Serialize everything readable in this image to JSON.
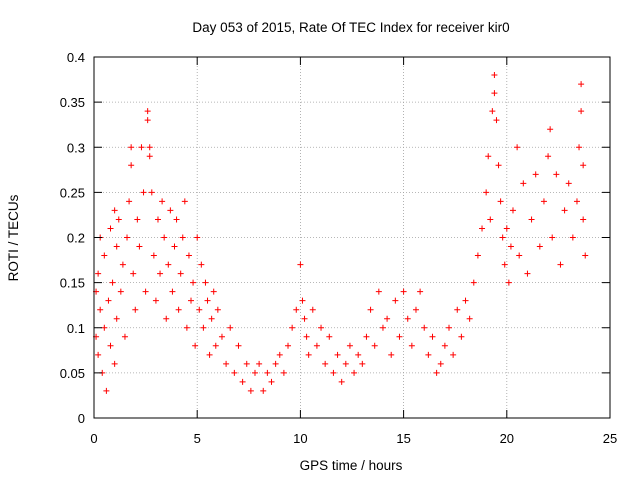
{
  "chart_data": {
    "type": "scatter",
    "title": "Day 053 of 2015, Rate Of TEC Index for receiver kir0",
    "xlabel": "GPS time / hours",
    "ylabel": "ROTI / TECUs",
    "xlim": [
      0,
      25
    ],
    "ylim": [
      0,
      0.4
    ],
    "xticks": [
      "0",
      "5",
      "10",
      "15",
      "20",
      "25"
    ],
    "yticks": [
      "0",
      "0.05",
      "0.1",
      "0.15",
      "0.2",
      "0.25",
      "0.3",
      "0.35",
      "0.4"
    ],
    "grid": true,
    "legend": "none",
    "marker": "+",
    "color": "#ff0000",
    "series": [
      {
        "points": [
          [
            0.1,
            0.14
          ],
          [
            0.1,
            0.09
          ],
          [
            0.2,
            0.16
          ],
          [
            0.2,
            0.07
          ],
          [
            0.3,
            0.2
          ],
          [
            0.3,
            0.12
          ],
          [
            0.4,
            0.05
          ],
          [
            0.5,
            0.18
          ],
          [
            0.5,
            0.1
          ],
          [
            0.6,
            0.03
          ],
          [
            0.7,
            0.13
          ],
          [
            0.8,
            0.21
          ],
          [
            0.8,
            0.08
          ],
          [
            0.9,
            0.15
          ],
          [
            1.0,
            0.23
          ],
          [
            1.0,
            0.06
          ],
          [
            1.1,
            0.19
          ],
          [
            1.1,
            0.11
          ],
          [
            1.2,
            0.22
          ],
          [
            1.3,
            0.14
          ],
          [
            1.4,
            0.17
          ],
          [
            1.5,
            0.09
          ],
          [
            1.6,
            0.2
          ],
          [
            1.7,
            0.24
          ],
          [
            1.8,
            0.28
          ],
          [
            1.8,
            0.3
          ],
          [
            1.9,
            0.16
          ],
          [
            2.0,
            0.12
          ],
          [
            2.1,
            0.22
          ],
          [
            2.2,
            0.19
          ],
          [
            2.3,
            0.3
          ],
          [
            2.4,
            0.25
          ],
          [
            2.5,
            0.14
          ],
          [
            2.6,
            0.34
          ],
          [
            2.6,
            0.33
          ],
          [
            2.7,
            0.29
          ],
          [
            2.7,
            0.3
          ],
          [
            2.8,
            0.25
          ],
          [
            2.9,
            0.18
          ],
          [
            3.0,
            0.13
          ],
          [
            3.1,
            0.22
          ],
          [
            3.2,
            0.16
          ],
          [
            3.3,
            0.24
          ],
          [
            3.4,
            0.2
          ],
          [
            3.5,
            0.11
          ],
          [
            3.6,
            0.17
          ],
          [
            3.7,
            0.23
          ],
          [
            3.8,
            0.14
          ],
          [
            3.9,
            0.19
          ],
          [
            4.0,
            0.22
          ],
          [
            4.1,
            0.12
          ],
          [
            4.2,
            0.16
          ],
          [
            4.3,
            0.2
          ],
          [
            4.4,
            0.24
          ],
          [
            4.5,
            0.1
          ],
          [
            4.6,
            0.18
          ],
          [
            4.7,
            0.13
          ],
          [
            4.8,
            0.15
          ],
          [
            4.9,
            0.08
          ],
          [
            5.0,
            0.2
          ],
          [
            5.1,
            0.12
          ],
          [
            5.2,
            0.17
          ],
          [
            5.3,
            0.1
          ],
          [
            5.4,
            0.15
          ],
          [
            5.5,
            0.13
          ],
          [
            5.6,
            0.07
          ],
          [
            5.7,
            0.11
          ],
          [
            5.8,
            0.14
          ],
          [
            5.9,
            0.08
          ],
          [
            6.0,
            0.12
          ],
          [
            6.2,
            0.09
          ],
          [
            6.4,
            0.06
          ],
          [
            6.6,
            0.1
          ],
          [
            6.8,
            0.05
          ],
          [
            7.0,
            0.08
          ],
          [
            7.2,
            0.04
          ],
          [
            7.4,
            0.06
          ],
          [
            7.6,
            0.03
          ],
          [
            7.8,
            0.05
          ],
          [
            8.0,
            0.06
          ],
          [
            8.2,
            0.03
          ],
          [
            8.4,
            0.05
          ],
          [
            8.6,
            0.04
          ],
          [
            8.8,
            0.06
          ],
          [
            9.0,
            0.07
          ],
          [
            9.2,
            0.05
          ],
          [
            9.4,
            0.08
          ],
          [
            9.6,
            0.1
          ],
          [
            9.8,
            0.12
          ],
          [
            10.0,
            0.17
          ],
          [
            10.1,
            0.13
          ],
          [
            10.2,
            0.11
          ],
          [
            10.3,
            0.09
          ],
          [
            10.4,
            0.07
          ],
          [
            10.6,
            0.12
          ],
          [
            10.8,
            0.08
          ],
          [
            11.0,
            0.1
          ],
          [
            11.2,
            0.06
          ],
          [
            11.4,
            0.09
          ],
          [
            11.6,
            0.05
          ],
          [
            11.8,
            0.07
          ],
          [
            12.0,
            0.04
          ],
          [
            12.2,
            0.06
          ],
          [
            12.4,
            0.08
          ],
          [
            12.6,
            0.05
          ],
          [
            12.8,
            0.07
          ],
          [
            13.0,
            0.06
          ],
          [
            13.2,
            0.09
          ],
          [
            13.4,
            0.12
          ],
          [
            13.6,
            0.08
          ],
          [
            13.8,
            0.14
          ],
          [
            14.0,
            0.1
          ],
          [
            14.2,
            0.11
          ],
          [
            14.4,
            0.07
          ],
          [
            14.6,
            0.13
          ],
          [
            14.8,
            0.09
          ],
          [
            15.0,
            0.14
          ],
          [
            15.2,
            0.11
          ],
          [
            15.4,
            0.08
          ],
          [
            15.6,
            0.12
          ],
          [
            15.8,
            0.14
          ],
          [
            16.0,
            0.1
          ],
          [
            16.2,
            0.07
          ],
          [
            16.4,
            0.09
          ],
          [
            16.6,
            0.05
          ],
          [
            16.8,
            0.06
          ],
          [
            17.0,
            0.08
          ],
          [
            17.2,
            0.1
          ],
          [
            17.4,
            0.07
          ],
          [
            17.6,
            0.12
          ],
          [
            17.8,
            0.09
          ],
          [
            18.0,
            0.13
          ],
          [
            18.2,
            0.11
          ],
          [
            18.4,
            0.15
          ],
          [
            18.6,
            0.18
          ],
          [
            18.8,
            0.21
          ],
          [
            19.0,
            0.25
          ],
          [
            19.1,
            0.29
          ],
          [
            19.2,
            0.22
          ],
          [
            19.3,
            0.34
          ],
          [
            19.4,
            0.38
          ],
          [
            19.4,
            0.36
          ],
          [
            19.5,
            0.33
          ],
          [
            19.6,
            0.28
          ],
          [
            19.7,
            0.24
          ],
          [
            19.8,
            0.2
          ],
          [
            19.9,
            0.17
          ],
          [
            20.0,
            0.21
          ],
          [
            20.1,
            0.15
          ],
          [
            20.2,
            0.19
          ],
          [
            20.3,
            0.23
          ],
          [
            20.5,
            0.3
          ],
          [
            20.6,
            0.18
          ],
          [
            20.8,
            0.26
          ],
          [
            21.0,
            0.16
          ],
          [
            21.2,
            0.22
          ],
          [
            21.4,
            0.27
          ],
          [
            21.6,
            0.19
          ],
          [
            21.8,
            0.24
          ],
          [
            22.0,
            0.29
          ],
          [
            22.1,
            0.32
          ],
          [
            22.2,
            0.2
          ],
          [
            22.4,
            0.27
          ],
          [
            22.6,
            0.17
          ],
          [
            22.8,
            0.23
          ],
          [
            23.0,
            0.26
          ],
          [
            23.2,
            0.2
          ],
          [
            23.4,
            0.24
          ],
          [
            23.5,
            0.3
          ],
          [
            23.6,
            0.37
          ],
          [
            23.6,
            0.34
          ],
          [
            23.7,
            0.28
          ],
          [
            23.7,
            0.22
          ],
          [
            23.8,
            0.18
          ]
        ]
      }
    ]
  }
}
